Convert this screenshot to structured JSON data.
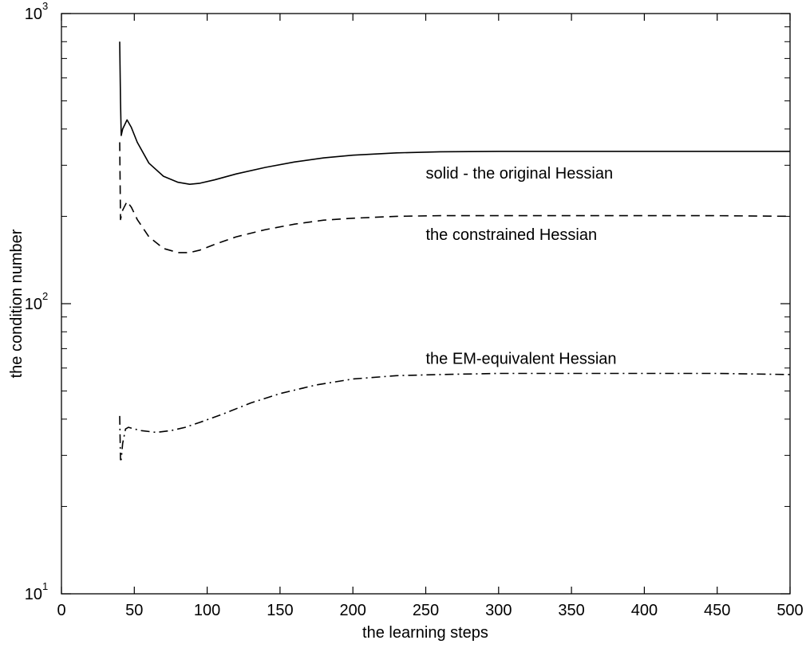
{
  "chart_data": {
    "type": "line",
    "title": "",
    "xlabel": "the learning steps",
    "ylabel": "the condition number",
    "xlim": [
      0,
      500
    ],
    "ylim": [
      10,
      1000
    ],
    "yscale": "log",
    "grid": false,
    "legend": "none",
    "x_ticks": [
      "0",
      "50",
      "100",
      "150",
      "200",
      "250",
      "300",
      "350",
      "400",
      "450",
      "500"
    ],
    "y_ticks": [
      {
        "value": 10,
        "base": "10",
        "exp": "1"
      },
      {
        "value": 100,
        "base": "10",
        "exp": "2"
      },
      {
        "value": 1000,
        "base": "10",
        "exp": "3"
      }
    ],
    "series": [
      {
        "style": "solid",
        "x": [
          40,
          40.5,
          41,
          42,
          45,
          48,
          52,
          60,
          70,
          80,
          88,
          95,
          105,
          120,
          140,
          160,
          180,
          200,
          230,
          260,
          300,
          350,
          400,
          450,
          500
        ],
        "y": [
          800,
          500,
          380,
          400,
          430,
          405,
          360,
          305,
          275,
          262,
          258,
          260,
          267,
          280,
          295,
          308,
          318,
          325,
          331,
          334,
          335,
          335,
          335,
          335,
          335
        ]
      },
      {
        "style": "dashed",
        "x": [
          40,
          40.5,
          41,
          42,
          45,
          48,
          52,
          60,
          70,
          80,
          88,
          95,
          105,
          120,
          140,
          160,
          180,
          200,
          230,
          260,
          300,
          350,
          400,
          450,
          500
        ],
        "y": [
          360,
          195,
          200,
          210,
          225,
          215,
          195,
          170,
          155,
          150,
          150,
          153,
          160,
          170,
          180,
          188,
          194,
          197,
          200,
          201,
          201,
          201,
          201,
          201,
          200
        ]
      },
      {
        "style": "dash-dot",
        "x": [
          40,
          40.5,
          41,
          42,
          44,
          46,
          50,
          55,
          65,
          75,
          85,
          95,
          110,
          130,
          150,
          175,
          200,
          230,
          260,
          300,
          350,
          400,
          450,
          500
        ],
        "y": [
          41,
          29,
          29,
          33,
          37,
          37.5,
          37,
          36.5,
          36,
          36.5,
          37.5,
          39,
          41.5,
          45.5,
          49,
          52.5,
          55,
          56.5,
          57,
          57.5,
          57.5,
          57.5,
          57.5,
          57
        ]
      }
    ],
    "annotations": [
      {
        "text": "solid -  the original Hessian",
        "x": 250,
        "y": 270
      },
      {
        "text": "the constrained Hessian",
        "x": 250,
        "y": 166
      },
      {
        "text": "the EM-equivalent Hessian",
        "x": 250,
        "y": 62
      }
    ]
  }
}
